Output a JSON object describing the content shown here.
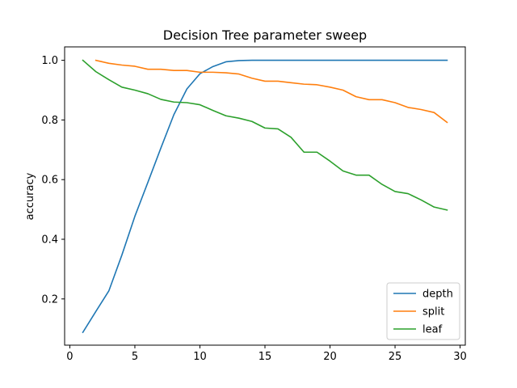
{
  "chart_data": {
    "type": "line",
    "title": "Decision Tree parameter sweep",
    "xlabel": "",
    "ylabel": "accuracy",
    "xlim": [
      -0.4,
      30.4
    ],
    "ylim": [
      0.045,
      1.045
    ],
    "xticks": [
      0,
      5,
      10,
      15,
      20,
      25,
      30
    ],
    "xtick_labels": [
      "0",
      "5",
      "10",
      "15",
      "20",
      "25",
      "30"
    ],
    "yticks": [
      0.2,
      0.4,
      0.6,
      0.8,
      1.0
    ],
    "ytick_labels": [
      "0.2",
      "0.4",
      "0.6",
      "0.8",
      "1.0"
    ],
    "grid": false,
    "legend_position": "lower-right",
    "series": [
      {
        "name": "depth",
        "color": "#1f77b4",
        "x": [
          1,
          2,
          3,
          4,
          5,
          6,
          7,
          8,
          9,
          10,
          11,
          12,
          13,
          14,
          15,
          16,
          17,
          18,
          19,
          20,
          21,
          22,
          23,
          24,
          25,
          26,
          27,
          28,
          29
        ],
        "values": [
          0.088,
          0.158,
          0.227,
          0.347,
          0.477,
          0.591,
          0.706,
          0.818,
          0.904,
          0.955,
          0.979,
          0.995,
          0.999,
          1.0,
          1.0,
          1.0,
          1.0,
          1.0,
          1.0,
          1.0,
          1.0,
          1.0,
          1.0,
          1.0,
          1.0,
          1.0,
          1.0,
          1.0,
          1.0
        ]
      },
      {
        "name": "split",
        "color": "#ff7f0e",
        "x": [
          2,
          3,
          4,
          5,
          6,
          7,
          8,
          9,
          10,
          11,
          12,
          13,
          14,
          15,
          16,
          17,
          18,
          19,
          20,
          21,
          22,
          23,
          24,
          25,
          26,
          27,
          28,
          29
        ],
        "values": [
          1.0,
          0.99,
          0.984,
          0.98,
          0.97,
          0.97,
          0.966,
          0.966,
          0.96,
          0.96,
          0.958,
          0.954,
          0.94,
          0.93,
          0.93,
          0.925,
          0.92,
          0.918,
          0.91,
          0.9,
          0.878,
          0.868,
          0.868,
          0.858,
          0.842,
          0.835,
          0.825,
          0.792
        ]
      },
      {
        "name": "leaf",
        "color": "#2ca02c",
        "x": [
          1,
          2,
          3,
          4,
          5,
          6,
          7,
          8,
          9,
          10,
          11,
          12,
          13,
          14,
          15,
          16,
          17,
          18,
          19,
          20,
          21,
          22,
          23,
          24,
          25,
          26,
          27,
          28,
          29
        ],
        "values": [
          1.0,
          0.962,
          0.935,
          0.91,
          0.9,
          0.888,
          0.869,
          0.86,
          0.858,
          0.851,
          0.832,
          0.814,
          0.806,
          0.795,
          0.773,
          0.77,
          0.742,
          0.692,
          0.692,
          0.662,
          0.629,
          0.615,
          0.615,
          0.584,
          0.56,
          0.553,
          0.532,
          0.508,
          0.498
        ]
      }
    ]
  }
}
